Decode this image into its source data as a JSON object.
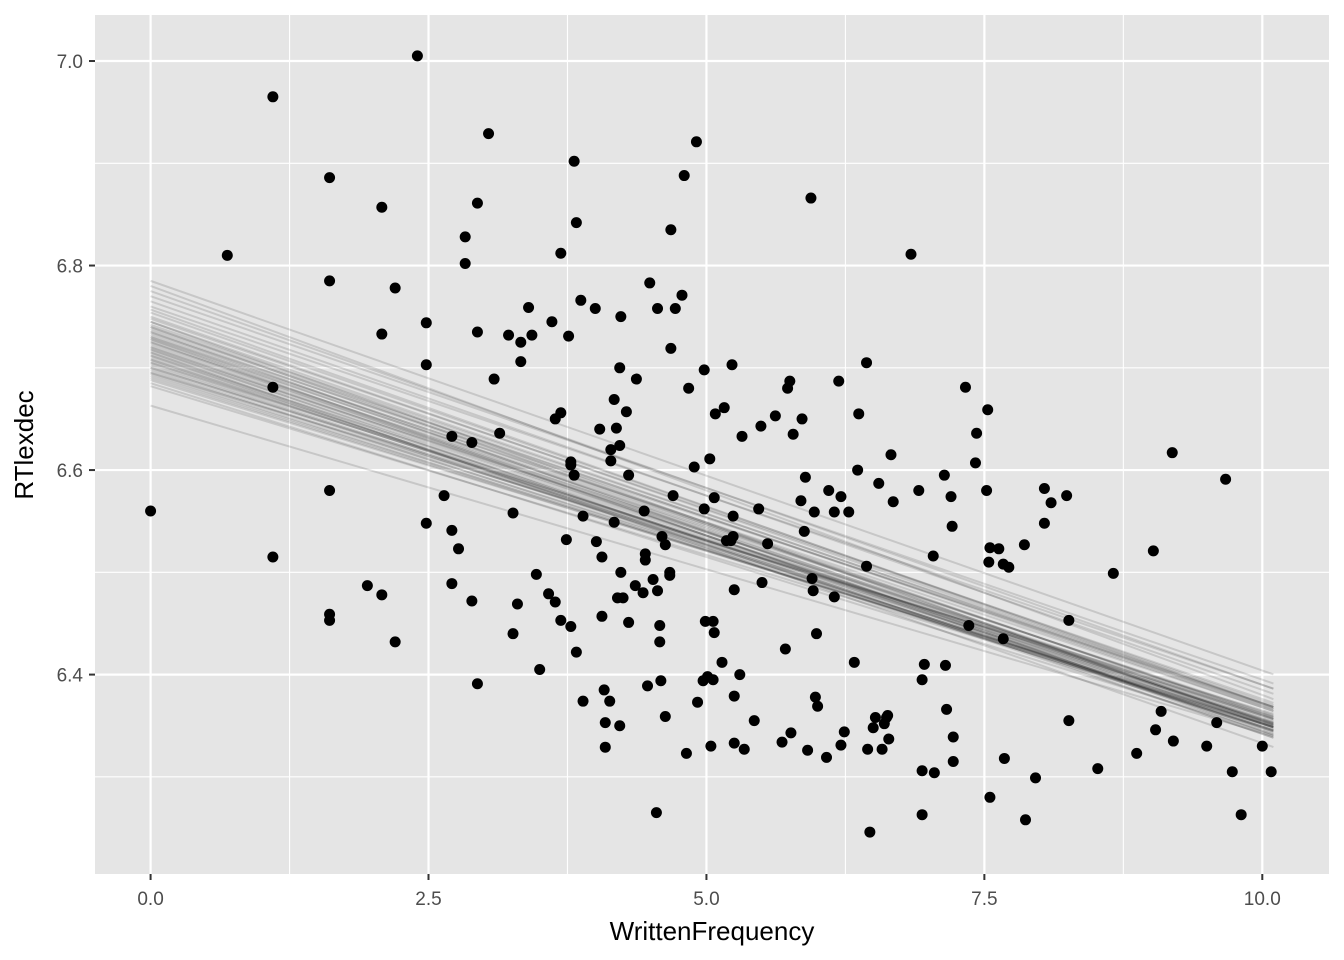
{
  "chart_data": {
    "type": "scatter",
    "title": "",
    "xlabel": "WrittenFrequency",
    "ylabel": "RTlexdec",
    "xlim": [
      -0.5,
      10.6
    ],
    "ylim": [
      6.205,
      7.045
    ],
    "x_ticks": [
      {
        "value": 0.0,
        "label": "0.0"
      },
      {
        "value": 2.5,
        "label": "2.5"
      },
      {
        "value": 5.0,
        "label": "5.0"
      },
      {
        "value": 7.5,
        "label": "7.5"
      },
      {
        "value": 10.0,
        "label": "10.0"
      }
    ],
    "y_ticks": [
      {
        "value": 6.4,
        "label": "6.4"
      },
      {
        "value": 6.6,
        "label": "6.6"
      },
      {
        "value": 6.8,
        "label": "6.8"
      },
      {
        "value": 7.0,
        "label": "7.0"
      }
    ],
    "x_minor": [
      1.25,
      3.75,
      6.25,
      8.75
    ],
    "y_minor": [
      6.3,
      6.5,
      6.7,
      6.9
    ],
    "grid": true,
    "panel_background": "#e5e5e5",
    "grid_color": "#ffffff",
    "point_color": "#000000",
    "line_color": "#000000",
    "points": [
      [
        0.0,
        6.56
      ],
      [
        0.69,
        6.81
      ],
      [
        1.1,
        6.965
      ],
      [
        1.1,
        6.681
      ],
      [
        1.1,
        6.515
      ],
      [
        1.61,
        6.886
      ],
      [
        1.61,
        6.785
      ],
      [
        1.61,
        6.58
      ],
      [
        1.61,
        6.459
      ],
      [
        1.61,
        6.453
      ],
      [
        1.95,
        6.487
      ],
      [
        2.08,
        6.857
      ],
      [
        2.08,
        6.733
      ],
      [
        2.08,
        6.478
      ],
      [
        2.2,
        6.778
      ],
      [
        2.2,
        6.432
      ],
      [
        2.4,
        7.005
      ],
      [
        2.48,
        6.744
      ],
      [
        2.48,
        6.703
      ],
      [
        2.48,
        6.548
      ],
      [
        2.64,
        6.575
      ],
      [
        2.71,
        6.633
      ],
      [
        2.71,
        6.541
      ],
      [
        2.71,
        6.489
      ],
      [
        2.77,
        6.523
      ],
      [
        2.83,
        6.828
      ],
      [
        2.83,
        6.802
      ],
      [
        2.89,
        6.627
      ],
      [
        2.89,
        6.472
      ],
      [
        2.94,
        6.861
      ],
      [
        2.94,
        6.735
      ],
      [
        2.94,
        6.391
      ],
      [
        3.04,
        6.929
      ],
      [
        3.09,
        6.689
      ],
      [
        3.14,
        6.636
      ],
      [
        3.22,
        6.732
      ],
      [
        3.26,
        6.558
      ],
      [
        3.26,
        6.44
      ],
      [
        3.3,
        6.469
      ],
      [
        3.33,
        6.725
      ],
      [
        3.33,
        6.706
      ],
      [
        3.4,
        6.759
      ],
      [
        3.43,
        6.732
      ],
      [
        3.47,
        6.498
      ],
      [
        3.5,
        6.405
      ],
      [
        3.58,
        6.479
      ],
      [
        3.61,
        6.745
      ],
      [
        3.64,
        6.65
      ],
      [
        3.64,
        6.471
      ],
      [
        3.69,
        6.812
      ],
      [
        3.69,
        6.656
      ],
      [
        3.69,
        6.453
      ],
      [
        3.74,
        6.532
      ],
      [
        3.76,
        6.731
      ],
      [
        3.78,
        6.608
      ],
      [
        3.78,
        6.605
      ],
      [
        3.78,
        6.447
      ],
      [
        3.81,
        6.902
      ],
      [
        3.81,
        6.595
      ],
      [
        3.83,
        6.842
      ],
      [
        3.83,
        6.422
      ],
      [
        3.87,
        6.766
      ],
      [
        3.89,
        6.555
      ],
      [
        3.89,
        6.374
      ],
      [
        4.0,
        6.758
      ],
      [
        4.01,
        6.53
      ],
      [
        4.04,
        6.64
      ],
      [
        4.06,
        6.515
      ],
      [
        4.06,
        6.457
      ],
      [
        4.08,
        6.385
      ],
      [
        4.09,
        6.353
      ],
      [
        4.09,
        6.329
      ],
      [
        4.13,
        6.374
      ],
      [
        4.14,
        6.62
      ],
      [
        4.14,
        6.609
      ],
      [
        4.17,
        6.669
      ],
      [
        4.17,
        6.549
      ],
      [
        4.19,
        6.641
      ],
      [
        4.2,
        6.475
      ],
      [
        4.22,
        6.624
      ],
      [
        4.22,
        6.7
      ],
      [
        4.22,
        6.35
      ],
      [
        4.23,
        6.75
      ],
      [
        4.23,
        6.5
      ],
      [
        4.25,
        6.475
      ],
      [
        4.28,
        6.657
      ],
      [
        4.3,
        6.595
      ],
      [
        4.3,
        6.451
      ],
      [
        4.36,
        6.487
      ],
      [
        4.37,
        6.689
      ],
      [
        4.43,
        6.48
      ],
      [
        4.44,
        6.56
      ],
      [
        4.45,
        6.518
      ],
      [
        4.45,
        6.512
      ],
      [
        4.47,
        6.389
      ],
      [
        4.49,
        6.783
      ],
      [
        4.52,
        6.493
      ],
      [
        4.55,
        6.265
      ],
      [
        4.56,
        6.758
      ],
      [
        4.56,
        6.482
      ],
      [
        4.58,
        6.448
      ],
      [
        4.58,
        6.432
      ],
      [
        4.59,
        6.394
      ],
      [
        4.6,
        6.535
      ],
      [
        4.63,
        6.359
      ],
      [
        4.63,
        6.527
      ],
      [
        4.67,
        6.5
      ],
      [
        4.67,
        6.497
      ],
      [
        4.68,
        6.835
      ],
      [
        4.68,
        6.719
      ],
      [
        4.7,
        6.575
      ],
      [
        4.72,
        6.758
      ],
      [
        4.78,
        6.771
      ],
      [
        4.8,
        6.888
      ],
      [
        4.82,
        6.323
      ],
      [
        4.84,
        6.68
      ],
      [
        4.89,
        6.603
      ],
      [
        4.91,
        6.921
      ],
      [
        4.92,
        6.373
      ],
      [
        4.97,
        6.394
      ],
      [
        4.98,
        6.698
      ],
      [
        4.98,
        6.562
      ],
      [
        4.99,
        6.452
      ],
      [
        5.01,
        6.398
      ],
      [
        5.03,
        6.611
      ],
      [
        5.04,
        6.33
      ],
      [
        5.06,
        6.452
      ],
      [
        5.06,
        6.395
      ],
      [
        5.07,
        6.573
      ],
      [
        5.07,
        6.441
      ],
      [
        5.08,
        6.655
      ],
      [
        5.14,
        6.412
      ],
      [
        5.16,
        6.661
      ],
      [
        5.18,
        6.531
      ],
      [
        5.22,
        6.531
      ],
      [
        5.23,
        6.703
      ],
      [
        5.24,
        6.555
      ],
      [
        5.24,
        6.535
      ],
      [
        5.25,
        6.483
      ],
      [
        5.25,
        6.379
      ],
      [
        5.25,
        6.333
      ],
      [
        5.3,
        6.4
      ],
      [
        5.32,
        6.633
      ],
      [
        5.34,
        6.327
      ],
      [
        5.43,
        6.355
      ],
      [
        5.47,
        6.562
      ],
      [
        5.49,
        6.643
      ],
      [
        5.5,
        6.49
      ],
      [
        5.55,
        6.528
      ],
      [
        5.62,
        6.653
      ],
      [
        5.68,
        6.334
      ],
      [
        5.71,
        6.425
      ],
      [
        5.73,
        6.68
      ],
      [
        5.75,
        6.687
      ],
      [
        5.76,
        6.343
      ],
      [
        5.78,
        6.635
      ],
      [
        5.85,
        6.57
      ],
      [
        5.86,
        6.65
      ],
      [
        5.88,
        6.54
      ],
      [
        5.89,
        6.593
      ],
      [
        5.91,
        6.326
      ],
      [
        5.94,
        6.866
      ],
      [
        5.95,
        6.494
      ],
      [
        5.96,
        6.482
      ],
      [
        5.97,
        6.559
      ],
      [
        5.98,
        6.378
      ],
      [
        5.99,
        6.44
      ],
      [
        6.0,
        6.369
      ],
      [
        6.08,
        6.319
      ],
      [
        6.1,
        6.58
      ],
      [
        6.15,
        6.559
      ],
      [
        6.15,
        6.476
      ],
      [
        6.19,
        6.687
      ],
      [
        6.21,
        6.574
      ],
      [
        6.21,
        6.331
      ],
      [
        6.24,
        6.344
      ],
      [
        6.28,
        6.559
      ],
      [
        6.33,
        6.412
      ],
      [
        6.36,
        6.6
      ],
      [
        6.37,
        6.655
      ],
      [
        6.44,
        6.705
      ],
      [
        6.44,
        6.506
      ],
      [
        6.45,
        6.327
      ],
      [
        6.47,
        6.246
      ],
      [
        6.5,
        6.348
      ],
      [
        6.52,
        6.358
      ],
      [
        6.55,
        6.587
      ],
      [
        6.58,
        6.327
      ],
      [
        6.6,
        6.352
      ],
      [
        6.62,
        6.358
      ],
      [
        6.63,
        6.36
      ],
      [
        6.64,
        6.337
      ],
      [
        6.66,
        6.615
      ],
      [
        6.68,
        6.569
      ],
      [
        6.84,
        6.811
      ],
      [
        6.91,
        6.58
      ],
      [
        6.94,
        6.395
      ],
      [
        6.94,
        6.306
      ],
      [
        6.94,
        6.263
      ],
      [
        6.96,
        6.41
      ],
      [
        7.04,
        6.516
      ],
      [
        7.05,
        6.304
      ],
      [
        7.14,
        6.595
      ],
      [
        7.15,
        6.409
      ],
      [
        7.16,
        6.366
      ],
      [
        7.2,
        6.574
      ],
      [
        7.21,
        6.545
      ],
      [
        7.22,
        6.339
      ],
      [
        7.22,
        6.315
      ],
      [
        7.33,
        6.681
      ],
      [
        7.36,
        6.448
      ],
      [
        7.42,
        6.607
      ],
      [
        7.43,
        6.636
      ],
      [
        7.52,
        6.58
      ],
      [
        7.53,
        6.659
      ],
      [
        7.54,
        6.51
      ],
      [
        7.55,
        6.524
      ],
      [
        7.55,
        6.28
      ],
      [
        7.63,
        6.523
      ],
      [
        7.67,
        6.508
      ],
      [
        7.67,
        6.435
      ],
      [
        7.68,
        6.318
      ],
      [
        7.72,
        6.505
      ],
      [
        7.86,
        6.527
      ],
      [
        7.87,
        6.258
      ],
      [
        7.96,
        6.299
      ],
      [
        8.04,
        6.582
      ],
      [
        8.04,
        6.548
      ],
      [
        8.1,
        6.568
      ],
      [
        8.24,
        6.575
      ],
      [
        8.26,
        6.453
      ],
      [
        8.26,
        6.355
      ],
      [
        8.52,
        6.308
      ],
      [
        8.66,
        6.499
      ],
      [
        8.87,
        6.323
      ],
      [
        9.02,
        6.521
      ],
      [
        9.04,
        6.346
      ],
      [
        9.09,
        6.364
      ],
      [
        9.19,
        6.617
      ],
      [
        9.2,
        6.335
      ],
      [
        9.5,
        6.33
      ],
      [
        9.59,
        6.353
      ],
      [
        9.67,
        6.591
      ],
      [
        9.73,
        6.305
      ],
      [
        9.81,
        6.263
      ],
      [
        10.0,
        6.33
      ],
      [
        10.08,
        6.305
      ]
    ],
    "fit_range": [
      0.0,
      10.1
    ],
    "fit_lines": [
      [
        6.785,
        -0.0381
      ],
      [
        6.78,
        -0.04
      ],
      [
        6.775,
        -0.0385
      ],
      [
        6.77,
        -0.0375
      ],
      [
        6.765,
        -0.038
      ],
      [
        6.76,
        -0.037
      ],
      [
        6.757,
        -0.0385
      ],
      [
        6.754,
        -0.038
      ],
      [
        6.75,
        -0.0378
      ],
      [
        6.748,
        -0.0372
      ],
      [
        6.745,
        -0.0375
      ],
      [
        6.742,
        -0.037
      ],
      [
        6.74,
        -0.0372
      ],
      [
        6.738,
        -0.0368
      ],
      [
        6.736,
        -0.0375
      ],
      [
        6.734,
        -0.0362
      ],
      [
        6.732,
        -0.037
      ],
      [
        6.73,
        -0.0362
      ],
      [
        6.728,
        -0.0365
      ],
      [
        6.726,
        -0.0372
      ],
      [
        6.724,
        -0.036
      ],
      [
        6.722,
        -0.0362
      ],
      [
        6.72,
        -0.0368
      ],
      [
        6.718,
        -0.0358
      ],
      [
        6.716,
        -0.036
      ],
      [
        6.714,
        -0.0365
      ],
      [
        6.712,
        -0.0355
      ],
      [
        6.71,
        -0.0358
      ],
      [
        6.708,
        -0.036
      ],
      [
        6.706,
        -0.035
      ],
      [
        6.704,
        -0.0355
      ],
      [
        6.702,
        -0.0352
      ],
      [
        6.7,
        -0.0345
      ],
      [
        6.698,
        -0.035
      ],
      [
        6.696,
        -0.0343
      ],
      [
        6.694,
        -0.0345
      ],
      [
        6.692,
        -0.034
      ],
      [
        6.69,
        -0.0338
      ],
      [
        6.688,
        -0.0334
      ],
      [
        6.685,
        -0.034
      ],
      [
        6.682,
        -0.033
      ],
      [
        6.663,
        -0.032
      ],
      [
        6.715,
        -0.0382
      ],
      [
        6.725,
        -0.0378
      ],
      [
        6.735,
        -0.039
      ],
      [
        6.705,
        -0.0345
      ],
      [
        6.745,
        -0.0393
      ],
      [
        6.74,
        -0.0386
      ],
      [
        6.73,
        -0.0375
      ],
      [
        6.72,
        -0.0362
      ],
      [
        6.712,
        -0.037
      ],
      [
        6.728,
        -0.0384
      ],
      [
        6.718,
        -0.0376
      ],
      [
        6.7,
        -0.0338
      ],
      [
        6.708,
        -0.0352
      ],
      [
        6.695,
        -0.033
      ]
    ]
  }
}
